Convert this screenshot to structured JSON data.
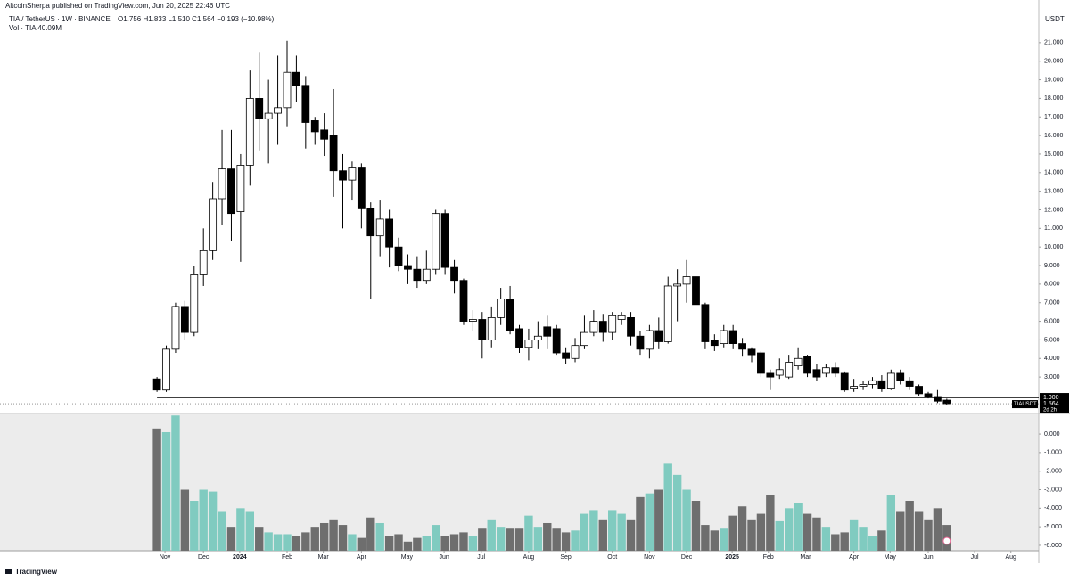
{
  "header": "AltcoinSherpa published on TradingView.com, Jun 20, 2025 22:46 UTC",
  "footer": "TradingView",
  "chart_data": [
    {
      "type": "candlestick",
      "title": "TIA / TetherUS · 1W · BINANCE",
      "ohlc_text": "O1.756 H1.833 L1.510 C1.564 −0.193 (−10.98%)",
      "axis_unit": "USDT",
      "symbol_label": "TIAUSDT",
      "countdown": "2d 2h",
      "up_color": "#ffffff",
      "down_color": "#000000",
      "grid": false,
      "hline": {
        "value": 1.9,
        "label": "1.900"
      },
      "x": [
        0,
        1,
        2,
        3,
        4,
        5,
        6,
        7,
        8,
        9,
        10,
        11,
        12,
        13,
        14,
        15,
        16,
        17,
        18,
        19,
        20,
        21,
        22,
        23,
        24,
        25,
        26,
        27,
        28,
        29,
        30,
        31,
        32,
        33,
        34,
        35,
        36,
        37,
        38,
        39,
        40,
        41,
        42,
        43,
        44,
        45,
        46,
        47,
        48,
        49,
        50,
        51,
        52,
        53,
        54,
        55,
        56,
        57,
        58,
        59,
        60,
        61,
        62,
        63,
        64,
        65,
        66,
        67,
        68,
        69,
        70,
        71,
        72,
        73,
        74,
        75,
        76,
        77,
        78,
        79,
        80,
        81,
        82,
        83,
        84,
        85
      ],
      "open": [
        2.9,
        2.3,
        4.5,
        6.8,
        5.4,
        8.5,
        9.8,
        12.6,
        14.2,
        11.9,
        14.4,
        18.0,
        16.9,
        17.2,
        17.5,
        19.4,
        18.7,
        16.8,
        16.3,
        16.0,
        14.1,
        13.6,
        14.3,
        12.1,
        10.6,
        11.5,
        10.0,
        9.0,
        8.8,
        8.2,
        8.8,
        11.8,
        8.9,
        8.2,
        6.0,
        6.1,
        5.0,
        6.2,
        7.2,
        5.6,
        4.6,
        5.0,
        5.7,
        5.6,
        4.3,
        4.0,
        4.7,
        5.4,
        6.0,
        5.4,
        6.1,
        6.2,
        5.2,
        4.5,
        5.5,
        4.9,
        7.9,
        8.0,
        8.4,
        6.9,
        5.0,
        4.8,
        5.5,
        4.8,
        4.5,
        4.3,
        3.2,
        3.1,
        3.0,
        3.6,
        4.1,
        3.4,
        3.2,
        3.5,
        3.2,
        2.4,
        2.5,
        2.6,
        2.8,
        2.4,
        3.2,
        2.8,
        2.5,
        2.1,
        1.95,
        1.756
      ],
      "high": [
        3.0,
        4.7,
        7.0,
        7.1,
        9.0,
        11.0,
        13.5,
        16.3,
        16.3,
        15.0,
        19.5,
        20.5,
        19.0,
        20.3,
        21.1,
        20.3,
        19.2,
        17.0,
        17.2,
        18.5,
        15.0,
        14.6,
        14.5,
        12.4,
        12.5,
        12.0,
        10.5,
        9.6,
        9.5,
        9.8,
        12.0,
        12.0,
        9.3,
        8.3,
        6.6,
        6.5,
        6.8,
        7.8,
        7.9,
        5.8,
        5.6,
        6.0,
        6.3,
        5.8,
        4.6,
        5.1,
        6.3,
        6.6,
        6.4,
        6.5,
        6.5,
        6.5,
        5.5,
        5.8,
        6.2,
        8.4,
        8.8,
        9.3,
        8.5,
        7.0,
        5.3,
        5.8,
        5.8,
        5.1,
        4.6,
        4.4,
        3.4,
        4.0,
        4.2,
        4.6,
        4.2,
        3.7,
        3.7,
        3.8,
        3.3,
        2.9,
        2.8,
        3.0,
        3.1,
        3.4,
        3.4,
        3.0,
        2.6,
        2.2,
        2.3,
        1.833
      ],
      "low": [
        2.2,
        2.2,
        4.3,
        5.0,
        5.2,
        7.9,
        9.3,
        11.2,
        10.3,
        9.2,
        13.3,
        15.2,
        14.5,
        15.5,
        16.5,
        17.8,
        15.3,
        15.5,
        14.9,
        12.7,
        11.0,
        12.5,
        11.0,
        7.2,
        9.5,
        8.9,
        8.7,
        8.0,
        7.8,
        8.0,
        8.5,
        8.5,
        7.5,
        5.8,
        5.5,
        4.0,
        4.6,
        5.8,
        5.3,
        4.3,
        3.9,
        4.5,
        4.5,
        4.2,
        3.7,
        3.8,
        4.5,
        5.2,
        4.9,
        5.0,
        5.8,
        4.7,
        4.2,
        4.0,
        4.5,
        4.8,
        6.0,
        7.0,
        6.0,
        4.5,
        4.4,
        4.6,
        4.5,
        4.1,
        3.8,
        3.0,
        2.3,
        2.9,
        2.9,
        3.4,
        3.0,
        2.8,
        3.0,
        3.0,
        2.2,
        2.2,
        2.3,
        2.4,
        2.2,
        2.3,
        2.6,
        2.3,
        2.0,
        1.85,
        1.6,
        1.51
      ],
      "close": [
        2.3,
        4.5,
        6.8,
        5.4,
        8.5,
        9.8,
        12.6,
        14.2,
        11.8,
        14.4,
        18.0,
        16.9,
        17.2,
        17.5,
        19.4,
        18.7,
        16.7,
        16.2,
        15.8,
        14.1,
        13.6,
        14.3,
        12.1,
        10.6,
        11.5,
        10.0,
        9.0,
        8.8,
        8.2,
        8.8,
        11.8,
        8.9,
        8.2,
        6.0,
        6.1,
        5.0,
        6.2,
        7.2,
        5.5,
        4.6,
        5.0,
        5.2,
        5.2,
        4.3,
        4.0,
        4.7,
        5.4,
        6.0,
        5.4,
        6.3,
        6.3,
        5.2,
        4.5,
        5.5,
        4.9,
        7.9,
        8.0,
        8.4,
        6.9,
        4.9,
        4.7,
        5.5,
        4.8,
        4.5,
        4.2,
        3.2,
        3.0,
        3.4,
        3.8,
        4.0,
        3.2,
        3.0,
        3.5,
        3.2,
        2.3,
        2.5,
        2.6,
        2.8,
        2.4,
        3.2,
        2.8,
        2.5,
        2.1,
        1.95,
        1.7,
        1.564
      ],
      "xlim": [
        -16.9,
        94.9
      ],
      "ylim": [
        1.087,
        22.72
      ],
      "yticks": [
        {
          "value": 3,
          "label": "3.000"
        },
        {
          "value": 4,
          "label": "4.000"
        },
        {
          "value": 5,
          "label": "5.000"
        },
        {
          "value": 6,
          "label": "6.000"
        },
        {
          "value": 7,
          "label": "7.000"
        },
        {
          "value": 8,
          "label": "8.000"
        },
        {
          "value": 9,
          "label": "9.000"
        },
        {
          "value": 10,
          "label": "10.000"
        },
        {
          "value": 11,
          "label": "11.000"
        },
        {
          "value": 12,
          "label": "12.000"
        },
        {
          "value": 13,
          "label": "13.000"
        },
        {
          "value": 14,
          "label": "14.000"
        },
        {
          "value": 15,
          "label": "15.000"
        },
        {
          "value": 16,
          "label": "16.000"
        },
        {
          "value": 17,
          "label": "17.000"
        },
        {
          "value": 18,
          "label": "18.000"
        },
        {
          "value": 19,
          "label": "19.000"
        },
        {
          "value": 20,
          "label": "20.000"
        },
        {
          "value": 21,
          "label": "21.000"
        }
      ],
      "xticks": [
        {
          "value": 0.86,
          "label": "Nov"
        },
        {
          "value": 5.0,
          "label": "Dec"
        },
        {
          "value": 8.9,
          "label": "2024"
        },
        {
          "value": 14.0,
          "label": "Feb"
        },
        {
          "value": 17.9,
          "label": "Mar"
        },
        {
          "value": 22.0,
          "label": "Apr"
        },
        {
          "value": 26.9,
          "label": "May"
        },
        {
          "value": 30.9,
          "label": "Jun"
        },
        {
          "value": 34.9,
          "label": "Jul"
        },
        {
          "value": 40.0,
          "label": "Aug"
        },
        {
          "value": 44.0,
          "label": "Sep"
        },
        {
          "value": 49.0,
          "label": "Oct"
        },
        {
          "value": 53.0,
          "label": "Nov"
        },
        {
          "value": 57.0,
          "label": "Dec"
        },
        {
          "value": 61.9,
          "label": "2025"
        },
        {
          "value": 65.8,
          "label": "Feb"
        },
        {
          "value": 69.8,
          "label": "Mar"
        },
        {
          "value": 75.0,
          "label": "Apr"
        },
        {
          "value": 78.9,
          "label": "May"
        },
        {
          "value": 83.0,
          "label": "Jun"
        },
        {
          "value": 88.0,
          "label": "Jul"
        },
        {
          "value": 91.9,
          "label": "Aug"
        }
      ]
    },
    {
      "type": "bar",
      "legend": "Vol · TIA  40.09M",
      "up_color": "#80cbc0",
      "down_color": "#6e6e6e",
      "x": [
        0,
        1,
        2,
        3,
        4,
        5,
        6,
        7,
        8,
        9,
        10,
        11,
        12,
        13,
        14,
        15,
        16,
        17,
        18,
        19,
        20,
        21,
        22,
        23,
        24,
        25,
        26,
        27,
        28,
        29,
        30,
        31,
        32,
        33,
        34,
        35,
        36,
        37,
        38,
        39,
        40,
        41,
        42,
        43,
        44,
        45,
        46,
        47,
        48,
        49,
        50,
        51,
        52,
        53,
        54,
        55,
        56,
        57,
        58,
        59,
        60,
        61,
        62,
        63,
        64,
        65,
        66,
        67,
        68,
        69,
        70,
        71,
        72,
        73,
        74,
        75,
        76,
        77,
        78,
        79,
        80,
        81,
        82,
        83,
        84,
        85
      ],
      "values": [
        0.3,
        0.1,
        1.0,
        -3.0,
        -3.6,
        -3.0,
        -3.1,
        -4.2,
        -5.0,
        -4.0,
        -4.2,
        -5.0,
        -5.3,
        -5.4,
        -5.4,
        -5.5,
        -5.3,
        -5.0,
        -4.8,
        -4.6,
        -4.9,
        -5.4,
        -5.6,
        -4.5,
        -4.8,
        -5.5,
        -5.4,
        -5.8,
        -5.6,
        -5.5,
        -4.9,
        -5.5,
        -5.4,
        -5.3,
        -5.5,
        -5.1,
        -4.6,
        -5.0,
        -5.1,
        -5.1,
        -4.4,
        -5.0,
        -4.8,
        -5.1,
        -5.3,
        -5.2,
        -4.3,
        -4.1,
        -4.6,
        -4.1,
        -4.3,
        -4.6,
        -3.4,
        -3.2,
        -3.0,
        -1.6,
        -2.2,
        -3.0,
        -3.6,
        -4.9,
        -5.2,
        -5.1,
        -4.4,
        -3.9,
        -4.6,
        -4.3,
        -3.3,
        -4.7,
        -4.0,
        -3.7,
        -4.3,
        -4.5,
        -5.0,
        -5.4,
        -5.3,
        -4.6,
        -5.0,
        -5.5,
        -5.2,
        -3.3,
        -4.2,
        -3.6,
        -4.2,
        -4.6,
        -4.0,
        -4.9
      ],
      "xlim": [
        -16.9,
        94.9
      ],
      "ylim": [
        -6.29,
        1.06
      ],
      "yticks": [
        {
          "value": 0,
          "label": "0.000"
        },
        {
          "value": -1,
          "label": "-1.000"
        },
        {
          "value": -2,
          "label": "-2.000"
        },
        {
          "value": -3,
          "label": "-3.000"
        },
        {
          "value": -4,
          "label": "-4.000"
        },
        {
          "value": -5,
          "label": "-5.000"
        },
        {
          "value": -6,
          "label": "-6.000"
        }
      ]
    }
  ]
}
